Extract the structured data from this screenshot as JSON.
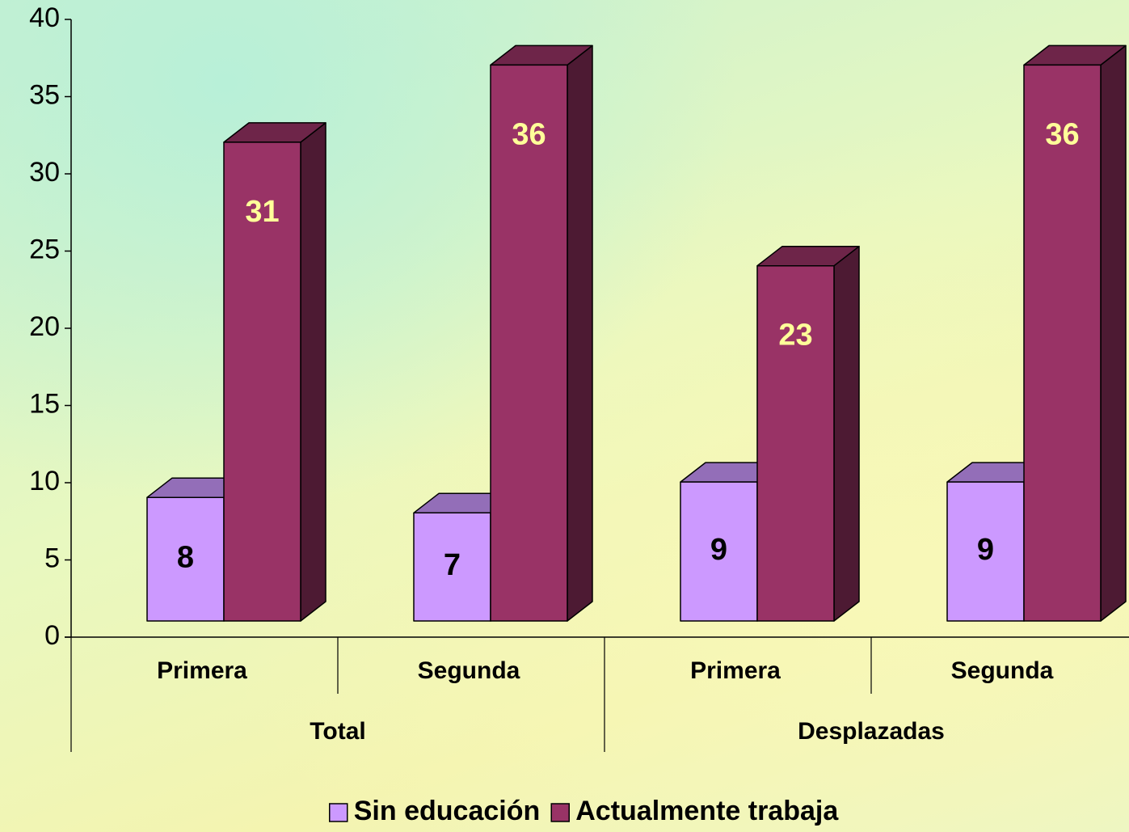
{
  "chart_data": {
    "type": "bar3d",
    "categories": [
      "Primera",
      "Segunda",
      "Primera",
      "Segunda"
    ],
    "groups": [
      "Total",
      "Desplazadas"
    ],
    "series": [
      {
        "name": "Sin educación",
        "color": "#cc99ff",
        "label_color": "#000000",
        "values": [
          8,
          7,
          9,
          9
        ]
      },
      {
        "name": "Actualmente trabaja",
        "color": "#993366",
        "label_color": "#ffff99",
        "values": [
          31,
          36,
          23,
          36
        ]
      }
    ],
    "ylim": [
      0,
      40
    ],
    "yticks": [
      0,
      5,
      10,
      15,
      20,
      25,
      30,
      35,
      40
    ]
  }
}
